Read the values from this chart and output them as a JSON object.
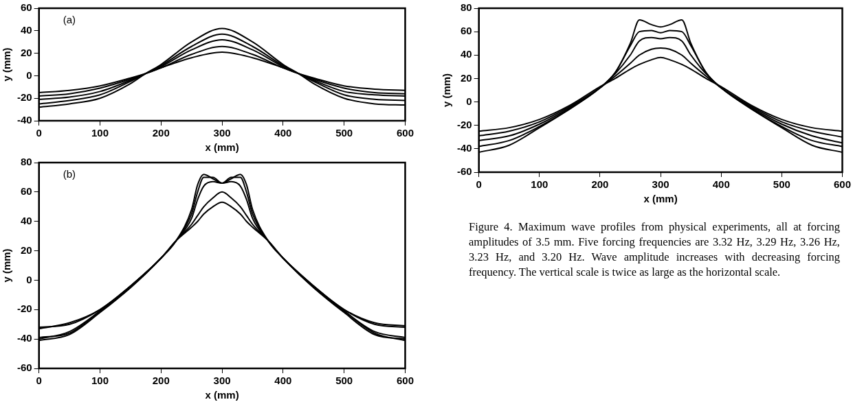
{
  "chart_data": [
    {
      "type": "line",
      "title": "(a)",
      "xlabel": "x (mm)",
      "ylabel": "y (mm)",
      "xlim": [
        0,
        600
      ],
      "xticks": [
        0,
        100,
        200,
        300,
        400,
        500,
        600
      ],
      "ylim": [
        -40,
        60
      ],
      "yticks": [
        -40,
        -20,
        0,
        20,
        40,
        60
      ],
      "x": [
        0,
        50,
        100,
        150,
        175,
        200,
        250,
        300,
        350,
        400,
        425,
        450,
        500,
        550,
        600
      ],
      "series": [
        {
          "color": "#000000",
          "values": [
            -28,
            -25,
            -20,
            -7,
            2,
            10,
            30,
            42,
            30,
            10,
            2,
            -7,
            -20,
            -25,
            -26
          ]
        },
        {
          "color": "#000000",
          "values": [
            -25,
            -22,
            -17,
            -5,
            2,
            9,
            26,
            37,
            26,
            9,
            2,
            -5,
            -17,
            -21,
            -22
          ]
        },
        {
          "color": "#000000",
          "values": [
            -21,
            -19,
            -14,
            -4,
            2,
            8,
            23,
            32,
            23,
            8,
            2,
            -4,
            -14,
            -17,
            -18
          ]
        },
        {
          "color": "#000000",
          "values": [
            -18,
            -16,
            -11,
            -3,
            2,
            7,
            19,
            26,
            19,
            7,
            2,
            -3,
            -11,
            -15,
            -16
          ]
        },
        {
          "color": "#000000",
          "values": [
            -15,
            -13,
            -9,
            -2,
            2,
            7,
            16,
            21,
            16,
            7,
            2,
            -2,
            -9,
            -12,
            -13
          ]
        }
      ]
    },
    {
      "type": "line",
      "title": "(b)",
      "xlabel": "x (mm)",
      "ylabel": "y (mm)",
      "xlim": [
        0,
        600
      ],
      "xticks": [
        0,
        100,
        200,
        300,
        400,
        500,
        600
      ],
      "ylim": [
        -60,
        80
      ],
      "yticks": [
        -60,
        -40,
        -20,
        0,
        20,
        40,
        60,
        80
      ],
      "x": [
        0,
        50,
        100,
        150,
        200,
        225,
        250,
        260,
        270,
        285,
        300,
        315,
        330,
        340,
        350,
        375,
        400,
        450,
        500,
        550,
        600
      ],
      "series": [
        {
          "color": "#000000",
          "values": [
            -41,
            -37,
            -22,
            -5,
            15,
            27,
            48,
            65,
            72,
            69,
            66,
            69,
            72,
            65,
            48,
            27,
            15,
            -5,
            -22,
            -37,
            -40
          ]
        },
        {
          "color": "#000000",
          "values": [
            -40,
            -35,
            -21,
            -5,
            15,
            27,
            45,
            60,
            70,
            70,
            66,
            70,
            70,
            60,
            45,
            27,
            15,
            -5,
            -21,
            -35,
            -39
          ]
        },
        {
          "color": "#000000",
          "values": [
            -39,
            -36,
            -21,
            -4,
            15,
            27,
            42,
            55,
            64,
            67,
            66,
            67,
            64,
            55,
            42,
            27,
            15,
            -4,
            -21,
            -36,
            -41
          ]
        },
        {
          "color": "#000000",
          "values": [
            -33,
            -29,
            -20,
            -4,
            15,
            27,
            38,
            44,
            50,
            56,
            60,
            56,
            50,
            44,
            38,
            27,
            15,
            -4,
            -20,
            -29,
            -31
          ]
        },
        {
          "color": "#000000",
          "values": [
            -32,
            -30,
            -20,
            -4,
            15,
            27,
            36,
            40,
            45,
            50,
            53,
            50,
            45,
            40,
            36,
            27,
            15,
            -4,
            -20,
            -30,
            -32
          ]
        }
      ]
    },
    {
      "type": "line",
      "xlabel": "x (mm)",
      "ylabel": "y (mm)",
      "xlim": [
        0,
        600
      ],
      "xticks": [
        0,
        100,
        200,
        300,
        400,
        500,
        600
      ],
      "ylim": [
        -60,
        80
      ],
      "yticks": [
        -60,
        -40,
        -20,
        0,
        20,
        40,
        60,
        80
      ],
      "x": [
        0,
        50,
        100,
        150,
        200,
        225,
        250,
        265,
        285,
        300,
        315,
        335,
        350,
        375,
        400,
        450,
        500,
        550,
        600
      ],
      "series": [
        {
          "color": "#000000",
          "values": [
            -43,
            -37,
            -22,
            -6,
            12,
            25,
            50,
            70,
            66,
            64,
            66,
            70,
            50,
            25,
            12,
            -6,
            -22,
            -37,
            -43
          ]
        },
        {
          "color": "#000000",
          "values": [
            -38,
            -33,
            -21,
            -6,
            12,
            25,
            48,
            60,
            61,
            59,
            61,
            60,
            48,
            25,
            12,
            -6,
            -21,
            -33,
            -38
          ]
        },
        {
          "color": "#000000",
          "values": [
            -33,
            -29,
            -19,
            -5,
            12,
            24,
            40,
            52,
            55,
            54,
            55,
            52,
            40,
            24,
            12,
            -5,
            -19,
            -29,
            -35
          ]
        },
        {
          "color": "#000000",
          "values": [
            -29,
            -25,
            -17,
            -4,
            12,
            22,
            33,
            40,
            45,
            46,
            45,
            40,
            33,
            22,
            12,
            -4,
            -17,
            -25,
            -30
          ]
        },
        {
          "color": "#000000",
          "values": [
            -25,
            -22,
            -15,
            -3,
            13,
            20,
            28,
            32,
            36,
            38,
            36,
            32,
            28,
            20,
            13,
            -3,
            -15,
            -22,
            -25
          ]
        }
      ],
      "annotations": [
        "Figure 4. Maximum wave profiles from physical experiments, all at forcing amplitudes of 3.5 mm. Five forcing frequencies are 3.32 Hz, 3.29 Hz, 3.26 Hz, 3.23 Hz, and 3.20 Hz. Wave amplitude increases with decreasing forcing frequency. The vertical scale is twice as large as the horizontal scale."
      ]
    }
  ]
}
